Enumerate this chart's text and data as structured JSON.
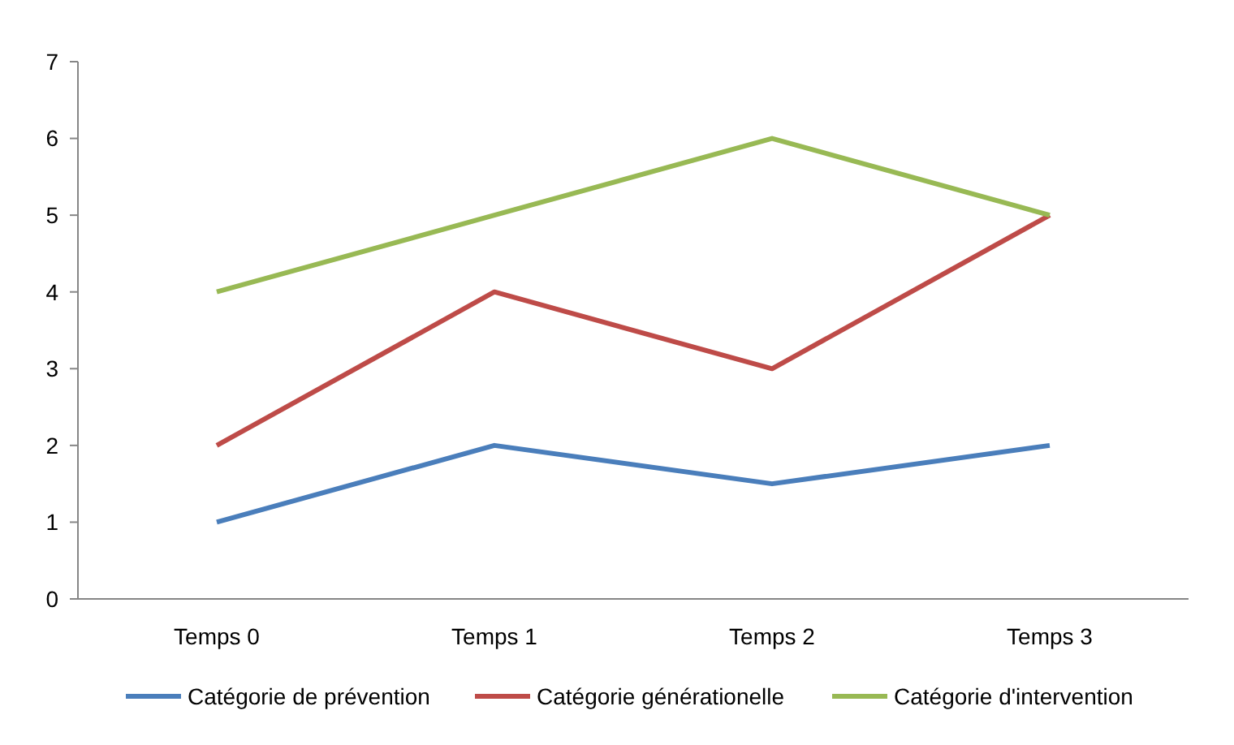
{
  "chart_data": {
    "type": "line",
    "categories": [
      "Temps 0",
      "Temps 1",
      "Temps 2",
      "Temps 3"
    ],
    "series": [
      {
        "name": "Catégorie de prévention",
        "color": "#4a7ebb",
        "values": [
          1,
          2,
          1.5,
          2
        ]
      },
      {
        "name": "Catégorie générationelle",
        "color": "#be4b48",
        "values": [
          2,
          4,
          3,
          5
        ]
      },
      {
        "name": "Catégorie d'intervention",
        "color": "#98b954",
        "values": [
          4,
          5,
          6,
          5
        ]
      }
    ],
    "ylim": [
      0,
      7
    ],
    "yticks": [
      0,
      1,
      2,
      3,
      4,
      5,
      6,
      7
    ],
    "grid": false,
    "legend": "bottom",
    "marker": "none",
    "line_style": "solid"
  }
}
